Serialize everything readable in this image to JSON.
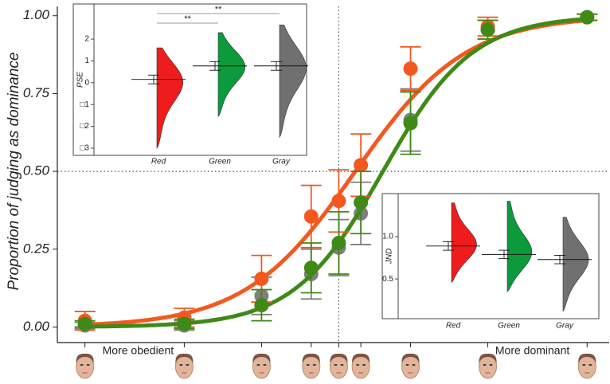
{
  "chart_data": [
    {
      "type": "scatter",
      "y_label": "Proportion of judging as dominance",
      "x": [
        5,
        23,
        37,
        46,
        51,
        55,
        64,
        78,
        96
      ],
      "xlim": [
        0,
        100
      ],
      "ylim": [
        -0.05,
        1.03
      ],
      "yticks": [
        {
          "value": 0,
          "label": "0.00"
        },
        {
          "value": 0.25,
          "label": "0.25"
        },
        {
          "value": 0.5,
          "label": "0.50"
        },
        {
          "value": 0.75,
          "label": "0.75"
        },
        {
          "value": 1,
          "label": "1.00"
        }
      ],
      "annotations": [
        {
          "text": "More obedient",
          "x": 5
        },
        {
          "text": "More dominant",
          "x": 96
        }
      ],
      "reference_lines": {
        "x": 51,
        "y": 0.5
      },
      "series": [
        {
          "color": "#7f7f7f",
          "values": [
            0.005,
            0.005,
            0.1,
            0.17,
            0.255,
            0.365,
            0.665,
            0.955,
            0.995
          ],
          "errors": [
            0.01,
            0.015,
            0.06,
            0.08,
            0.09,
            0.1,
            0.1,
            0.03,
            0.01
          ]
        },
        {
          "color": "#f4581e",
          "values": [
            0.02,
            0.03,
            0.155,
            0.355,
            0.405,
            0.52,
            0.83,
            0.965,
            0.995
          ],
          "errors": [
            0.03,
            0.03,
            0.075,
            0.1,
            0.1,
            0.1,
            0.07,
            0.03,
            0.01
          ],
          "fit": {
            "mu": 54,
            "sigma": 10
          }
        },
        {
          "color": "#3f8a17",
          "values": [
            0.01,
            0.01,
            0.07,
            0.19,
            0.27,
            0.4,
            0.655,
            0.955,
            0.995
          ],
          "errors": [
            0.01,
            0.015,
            0.05,
            0.08,
            0.1,
            0.1,
            0.1,
            0.03,
            0.01
          ],
          "fit": {
            "mu": 59,
            "sigma": 8.1
          }
        }
      ]
    },
    {
      "type": "violin",
      "y_label": "PSE",
      "categories": [
        "Red",
        "Green",
        "Gray"
      ],
      "colors": [
        "#ee1c1c",
        "#0c9a3c",
        "#707070"
      ],
      "means": [
        0.15,
        0.77,
        0.77
      ],
      "errors": [
        0.2,
        0.2,
        0.2
      ],
      "mins": [
        -3.0,
        -1.55,
        -2.5
      ],
      "maxs": [
        1.6,
        2.3,
        2.65
      ],
      "ylim": [
        -3.33,
        3.61
      ],
      "yticks": [
        2,
        1,
        0,
        {
          "value": -1,
          "label": "□1"
        },
        {
          "value": -2,
          "label": "□2"
        },
        {
          "value": -3,
          "label": "□3"
        }
      ],
      "significance": [
        {
          "text": "**",
          "groups": [
            "Red",
            "Gray"
          ]
        },
        {
          "text": "**",
          "groups": [
            "Red",
            "Green"
          ]
        }
      ]
    },
    {
      "type": "violin",
      "y_label": "JND",
      "categories": [
        "Red",
        "Green",
        "Gray"
      ],
      "colors": [
        "#ee1c1c",
        "#0c9a3c",
        "#707070"
      ],
      "means": [
        0.89,
        0.79,
        0.73
      ],
      "errors": [
        0.05,
        0.05,
        0.05
      ],
      "mins": [
        0.46,
        0.35,
        0.12
      ],
      "maxs": [
        1.4,
        1.42,
        1.23
      ],
      "ylim": [
        0.03,
        1.51
      ],
      "yticks": [
        {
          "value": 1,
          "label": "1.0"
        },
        {
          "value": 0.5,
          "label": "0.5"
        }
      ]
    }
  ]
}
